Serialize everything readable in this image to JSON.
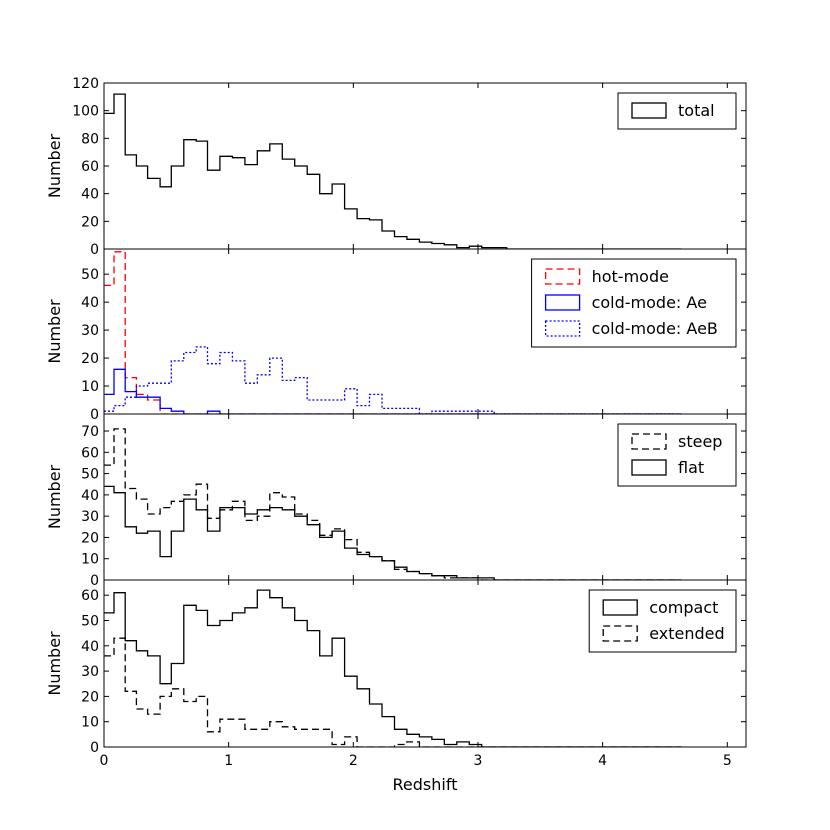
{
  "chart_data": {
    "type": "step-histogram",
    "xlabel": "Redshift",
    "x_ticks": [
      {
        "value": 0,
        "label": "0"
      },
      {
        "value": 1,
        "label": "1"
      },
      {
        "value": 2,
        "label": "2"
      },
      {
        "value": 3,
        "label": "3"
      },
      {
        "value": 4,
        "label": "4"
      },
      {
        "value": 5,
        "label": "5"
      }
    ],
    "bin_edges": [
      0.0,
      0.08,
      0.17,
      0.26,
      0.35,
      0.45,
      0.54,
      0.64,
      0.74,
      0.83,
      0.93,
      1.03,
      1.13,
      1.23,
      1.33,
      1.43,
      1.53,
      1.63,
      1.73,
      1.83,
      1.93,
      2.03,
      2.13,
      2.23,
      2.33,
      2.43,
      2.53,
      2.63,
      2.73,
      2.83,
      2.93,
      3.03,
      3.13,
      3.23,
      3.33,
      3.43,
      3.53,
      3.63,
      3.73,
      3.83,
      3.93,
      4.03,
      4.13,
      4.23,
      4.33,
      4.43,
      4.53,
      4.63
    ],
    "panels": [
      {
        "ylabel": "Number",
        "ylim": [
          0,
          120
        ],
        "y_ticks": [
          0,
          20,
          40,
          60,
          80,
          100,
          120
        ],
        "legend_position": "top-right",
        "series": [
          {
            "name": "total",
            "color": "#000000",
            "style": "solid",
            "values": [
              98,
              112,
              68,
              60,
              51,
              45,
              60,
              79,
              78,
              57,
              67,
              66,
              61,
              71,
              76,
              65,
              60,
              54,
              40,
              47,
              29,
              22,
              21,
              13,
              9,
              7,
              5,
              4,
              3,
              1,
              2,
              1,
              1,
              0,
              0,
              0,
              0,
              0,
              0,
              0,
              0,
              0,
              0,
              0,
              0,
              0,
              0
            ]
          }
        ]
      },
      {
        "ylabel": "Number",
        "ylim": [
          0,
          59
        ],
        "y_ticks": [
          0,
          10,
          20,
          30,
          40,
          50
        ],
        "legend_position": "top-right",
        "series": [
          {
            "name": "hot-mode",
            "color": "#ff0000",
            "style": "dashed",
            "values": [
              46,
              58,
              13,
              7,
              5,
              0,
              0,
              0,
              0,
              0,
              0,
              0,
              0,
              0,
              0,
              0,
              0,
              0,
              0,
              0,
              0,
              0,
              0,
              0,
              0,
              0,
              0,
              0,
              0,
              0,
              0,
              0,
              0,
              0,
              0,
              0,
              0,
              0,
              0,
              0,
              0,
              0,
              0,
              0,
              0,
              0,
              0
            ]
          },
          {
            "name": "cold-mode: Ae",
            "color": "#0000ff",
            "style": "solid",
            "values": [
              7,
              16,
              8,
              6,
              6,
              2,
              1,
              0,
              0,
              1,
              0,
              0,
              0,
              0,
              0,
              0,
              0,
              0,
              0,
              0,
              0,
              0,
              0,
              0,
              0,
              0,
              0,
              0,
              0,
              0,
              0,
              0,
              0,
              0,
              0,
              0,
              0,
              0,
              0,
              0,
              0,
              0,
              0,
              0,
              0,
              0,
              0
            ]
          },
          {
            "name": "cold-mode: AeB",
            "color": "#0000ff",
            "style": "dotted",
            "values": [
              1,
              3,
              6,
              10,
              11,
              11,
              19,
              22,
              24,
              18,
              22,
              19,
              11,
              14,
              20,
              12,
              13,
              5,
              5,
              5,
              9,
              3,
              7,
              2,
              2,
              2,
              0,
              1,
              1,
              1,
              1,
              1,
              0,
              0,
              0,
              0,
              0,
              0,
              0,
              0,
              0,
              0,
              0,
              0,
              0,
              0,
              0
            ]
          }
        ]
      },
      {
        "ylabel": "Number",
        "ylim": [
          0,
          78
        ],
        "y_ticks": [
          0,
          10,
          20,
          30,
          40,
          50,
          60,
          70
        ],
        "legend_position": "top-right",
        "series": [
          {
            "name": "steep",
            "color": "#000000",
            "style": "dashed",
            "values": [
              54,
              71,
              43,
              38,
              31,
              34,
              37,
              40,
              45,
              29,
              33,
              37,
              28,
              30,
              41,
              39,
              31,
              28,
              21,
              24,
              19,
              13,
              11,
              9,
              5,
              4,
              3,
              2,
              1,
              1,
              1,
              0,
              0,
              0,
              0,
              0,
              0,
              0,
              0,
              0,
              0,
              0,
              0,
              0,
              0,
              0,
              0
            ]
          },
          {
            "name": "flat",
            "color": "#000000",
            "style": "solid",
            "values": [
              44,
              41,
              25,
              22,
              23,
              11,
              23,
              38,
              33,
              23,
              34,
              34,
              31,
              33,
              34,
              33,
              30,
              26,
              20,
              23,
              15,
              12,
              11,
              9,
              6,
              4,
              3,
              2,
              2,
              1,
              1,
              1,
              0,
              0,
              0,
              0,
              0,
              0,
              0,
              0,
              0,
              0,
              0,
              0,
              0,
              0,
              0
            ]
          }
        ]
      },
      {
        "ylabel": "Number",
        "ylim": [
          0,
          66
        ],
        "y_ticks": [
          0,
          10,
          20,
          30,
          40,
          50,
          60
        ],
        "legend_position": "top-right",
        "series": [
          {
            "name": "compact",
            "color": "#000000",
            "style": "solid",
            "values": [
              53,
              61,
              42,
              38,
              36,
              25,
              33,
              56,
              54,
              48,
              50,
              53,
              55,
              62,
              59,
              55,
              50,
              46,
              36,
              43,
              28,
              23,
              17,
              12,
              7,
              5,
              4,
              3,
              1,
              2,
              1,
              0,
              0,
              0,
              0,
              0,
              0,
              0,
              0,
              0,
              0,
              0,
              0,
              0,
              0,
              0,
              0
            ]
          },
          {
            "name": "extended",
            "color": "#000000",
            "style": "dashed",
            "values": [
              36,
              43,
              22,
              15,
              13,
              20,
              23,
              18,
              20,
              6,
              11,
              11,
              7,
              7,
              10,
              8,
              7,
              7,
              7,
              1,
              4,
              0,
              0,
              0,
              1,
              2,
              0,
              0,
              0,
              0,
              0,
              0,
              0,
              0,
              0,
              0,
              0,
              0,
              0,
              0,
              0,
              0,
              0,
              0,
              0,
              0,
              0
            ]
          }
        ]
      }
    ]
  }
}
